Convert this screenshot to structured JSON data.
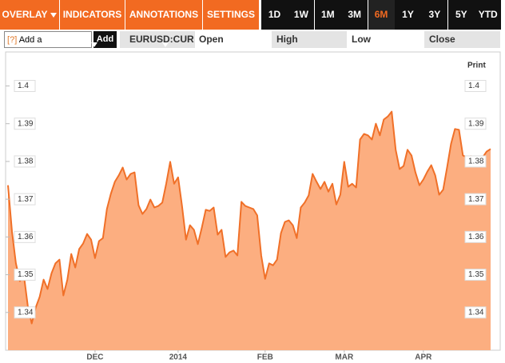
{
  "toolbar": {
    "menus": [
      "OVERLAY",
      "INDICATORS",
      "ANNOTATIONS",
      "SETTINGS"
    ],
    "ranges": [
      "1D",
      "1W",
      "1M",
      "3M",
      "6M",
      "1Y",
      "3Y",
      "5Y",
      "YTD"
    ],
    "active_range_index": 4
  },
  "comparison": {
    "help_icon": "?",
    "placeholder": "Add a Comparison",
    "button": "Add"
  },
  "quote": {
    "ticker": "EURUSD:CUR",
    "fields": [
      "Open",
      "High",
      "Low",
      "Close"
    ]
  },
  "print": "Print",
  "chart_data": {
    "type": "area",
    "color": "#f07028",
    "fill": "#fcae80",
    "values": [
      1.3737,
      1.3614,
      1.353,
      1.3483,
      1.35,
      1.3417,
      1.3371,
      1.3413,
      1.3441,
      1.3487,
      1.3462,
      1.3504,
      1.353,
      1.354,
      1.3445,
      1.3487,
      1.3555,
      1.3519,
      1.3568,
      1.3583,
      1.3608,
      1.3593,
      1.3544,
      1.3589,
      1.3597,
      1.3674,
      1.3714,
      1.3746,
      1.3763,
      1.3784,
      1.3752,
      1.3767,
      1.3771,
      1.3684,
      1.3661,
      1.3674,
      1.3699,
      1.3678,
      1.3682,
      1.3691,
      1.3741,
      1.3799,
      1.3741,
      1.3758,
      1.3682,
      1.3593,
      1.3631,
      1.3619,
      1.3581,
      1.3625,
      1.3672,
      1.3669,
      1.3678,
      1.3606,
      1.3619,
      1.3547,
      1.3559,
      1.3564,
      1.3551,
      1.3693,
      1.3682,
      1.3678,
      1.3674,
      1.3657,
      1.3551,
      1.3489,
      1.353,
      1.3525,
      1.354,
      1.361,
      1.364,
      1.3644,
      1.3631,
      1.3597,
      1.3678,
      1.3691,
      1.371,
      1.3767,
      1.3746,
      1.3727,
      1.3746,
      1.372,
      1.3741,
      1.3686,
      1.3712,
      1.3799,
      1.3733,
      1.3741,
      1.3731,
      1.3858,
      1.3873,
      1.3869,
      1.3858,
      1.39,
      1.3869,
      1.3911,
      1.3919,
      1.3932,
      1.3831,
      1.378,
      1.3788,
      1.3831,
      1.3816,
      1.3771,
      1.3737,
      1.3752,
      1.3773,
      1.379,
      1.3763,
      1.3712,
      1.3725,
      1.3784,
      1.3847,
      1.3886,
      1.3884,
      1.3816,
      1.3811,
      1.3814,
      1.3809,
      1.3811,
      1.3811,
      1.3826,
      1.3833
    ],
    "xlim": [
      0,
      122
    ],
    "xticks": [
      {
        "value": 22,
        "label": "DEC"
      },
      {
        "value": 43,
        "label": "2014"
      },
      {
        "value": 65,
        "label": "FEB"
      },
      {
        "value": 85,
        "label": "MAR"
      },
      {
        "value": 105,
        "label": "APR"
      }
    ],
    "ylim": [
      1.33,
      1.409
    ],
    "yticks": [
      1.34,
      1.35,
      1.36,
      1.37,
      1.38,
      1.39,
      1.4
    ]
  }
}
